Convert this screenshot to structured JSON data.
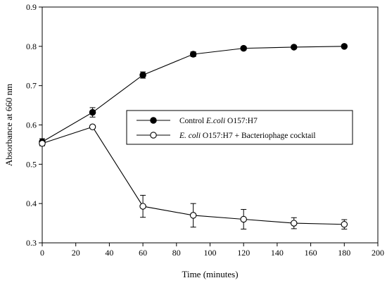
{
  "chart_data": {
    "type": "line",
    "xlabel": "Time (minutes)",
    "ylabel": "Absorbance at 660 nm",
    "xlim": [
      0,
      200
    ],
    "ylim": [
      0.3,
      0.9
    ],
    "xticks": [
      0,
      20,
      40,
      60,
      80,
      100,
      120,
      140,
      160,
      180,
      200
    ],
    "yticks": [
      0.3,
      0.4,
      0.5,
      0.6,
      0.7,
      0.8,
      0.9
    ],
    "grid": false,
    "legend_position": "center-right",
    "series": [
      {
        "name_parts": [
          {
            "text": "Control ",
            "italic": false
          },
          {
            "text": "E.coli",
            "italic": true
          },
          {
            "text": " O157:H7",
            "italic": false
          }
        ],
        "marker": "filled-circle",
        "x": [
          0,
          30,
          60,
          90,
          120,
          150,
          180
        ],
        "y": [
          0.557,
          0.632,
          0.727,
          0.78,
          0.795,
          0.798,
          0.8
        ],
        "err": [
          0.008,
          0.012,
          0.008,
          0.006,
          0.004,
          0.003,
          0.004
        ]
      },
      {
        "name_parts": [
          {
            "text": "E. coli",
            "italic": true
          },
          {
            "text": " O157:H7 + Bacteriophage cocktail",
            "italic": false
          }
        ],
        "marker": "open-circle",
        "x": [
          0,
          30,
          60,
          90,
          120,
          150,
          180
        ],
        "y": [
          0.553,
          0.595,
          0.393,
          0.37,
          0.36,
          0.35,
          0.347
        ],
        "err": [
          0.006,
          0.004,
          0.028,
          0.03,
          0.025,
          0.014,
          0.012
        ]
      }
    ]
  }
}
